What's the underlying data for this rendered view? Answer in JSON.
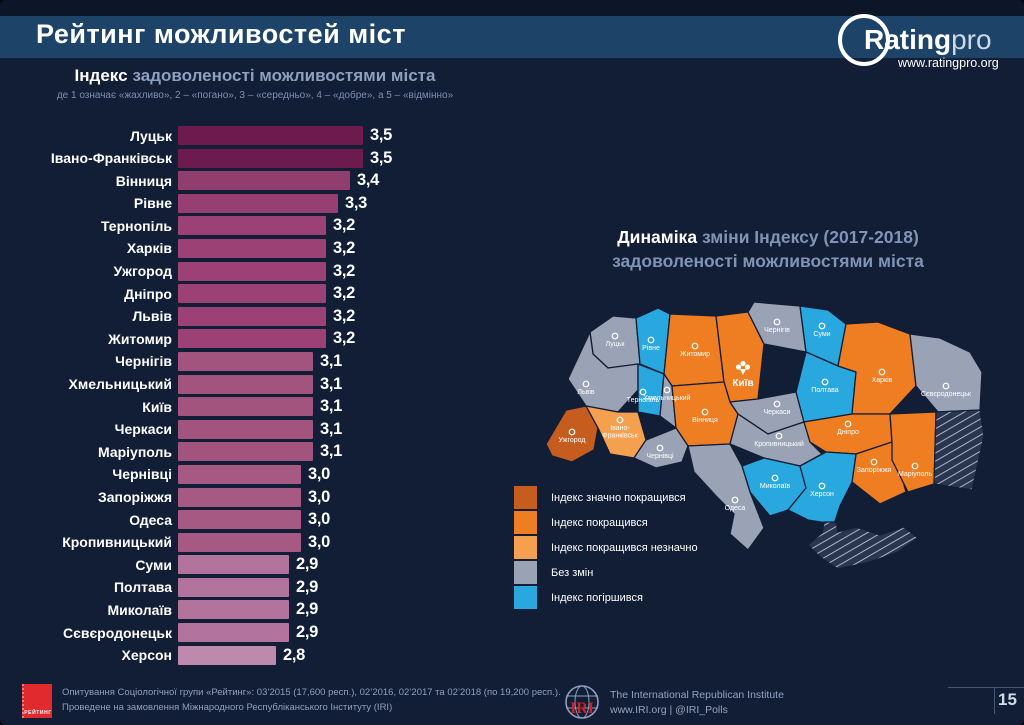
{
  "slide": {
    "title": "Рейтинг можливостей міст",
    "page_number": "15"
  },
  "brand": {
    "name_bold": "Rating",
    "name_light": "pro",
    "website": "www.ratingpro.org"
  },
  "chart_data": {
    "type": "bar",
    "title_strong": "Індекс",
    "title_rest": "задоволеності можливостями міста",
    "scale_note": "де 1 означає «жахливо», 2 – «погано», 3 – «середньо», 4 – «добре», а 5 – «відмінно»",
    "categories": [
      "Луцьк",
      "Івано-Франківськ",
      "Вінниця",
      "Рівне",
      "Тернопіль",
      "Харків",
      "Ужгород",
      "Дніпро",
      "Львів",
      "Житомир",
      "Чернігів",
      "Хмельницький",
      "Київ",
      "Черкаси",
      "Маріуполь",
      "Чернівці",
      "Запоріжжя",
      "Одеса",
      "Кропивницький",
      "Суми",
      "Полтава",
      "Миколаїв",
      "Сєвєродонецьк",
      "Херсон"
    ],
    "values": [
      3.5,
      3.5,
      3.4,
      3.3,
      3.2,
      3.2,
      3.2,
      3.2,
      3.2,
      3.2,
      3.1,
      3.1,
      3.1,
      3.1,
      3.1,
      3.0,
      3.0,
      3.0,
      3.0,
      2.9,
      2.9,
      2.9,
      2.9,
      2.8
    ],
    "value_labels": [
      "3,5",
      "3,5",
      "3,4",
      "3,3",
      "3,2",
      "3,2",
      "3,2",
      "3,2",
      "3,2",
      "3,2",
      "3,1",
      "3,1",
      "3,1",
      "3,1",
      "3,1",
      "3,0",
      "3,0",
      "3,0",
      "3,0",
      "2,9",
      "2,9",
      "2,9",
      "2,9",
      "2,8"
    ],
    "xlim": [
      2.0,
      3.52
    ],
    "bar_colors": {
      "3,5": "#6d1b4e",
      "3,4": "#913e6f",
      "3,3": "#973f72",
      "3,2": "#9b4175",
      "3,1": "#a2537e",
      "3,0": "#a65983",
      "2,9": "#b2749c",
      "2,8": "#bd89ad"
    }
  },
  "map": {
    "title_strong": "Динаміка",
    "title_rest": "зміни Індексу (2017-2018)",
    "title_line2": "задоволеності можливостями міста",
    "legend": [
      {
        "key": "much-improved",
        "label": "Індекс значно покращився",
        "color": "#c65d1e"
      },
      {
        "key": "improved",
        "label": "Індекс покращився",
        "color": "#ef7d22"
      },
      {
        "key": "slightly-improved",
        "label": "Індекс покращився незначно",
        "color": "#f4a04f"
      },
      {
        "key": "no-change",
        "label": "Без змін",
        "color": "#9aa3b5"
      },
      {
        "key": "worse",
        "label": "Індекс погіршився",
        "color": "#29a8e0"
      }
    ],
    "regions": [
      {
        "city": "Луцьк",
        "status": "no-change"
      },
      {
        "city": "Рівне",
        "status": "worse"
      },
      {
        "city": "Житомир",
        "status": "improved"
      },
      {
        "city": "Київ",
        "status": "improved"
      },
      {
        "city": "Чернігів",
        "status": "no-change"
      },
      {
        "city": "Суми",
        "status": "worse"
      },
      {
        "city": "Львів",
        "status": "no-change"
      },
      {
        "city": "Тернопіль",
        "status": "worse"
      },
      {
        "city": "Хмельницький",
        "status": "no-change"
      },
      {
        "city": "Вінниця",
        "status": "improved"
      },
      {
        "city": "Черкаси",
        "status": "no-change"
      },
      {
        "city": "Полтава",
        "status": "worse"
      },
      {
        "city": "Харків",
        "status": "improved"
      },
      {
        "city": "Сєвєродонецьк",
        "status": "no-change"
      },
      {
        "city": "Ужгород",
        "status": "much-improved"
      },
      {
        "city": "Івано-Франківськ",
        "status": "slightly-improved"
      },
      {
        "city": "Чернівці",
        "status": "no-change"
      },
      {
        "city": "Кропивницький",
        "status": "no-change"
      },
      {
        "city": "Дніпро",
        "status": "improved"
      },
      {
        "city": "Запоріжжя",
        "status": "improved"
      },
      {
        "city": "Маріуполь",
        "status": "improved"
      },
      {
        "city": "Миколаїв",
        "status": "worse"
      },
      {
        "city": "Одеса",
        "status": "no-change"
      },
      {
        "city": "Херсон",
        "status": "worse"
      }
    ]
  },
  "footer": {
    "survey_line1": "Опитування Соціологічної групи «Рейтинг»: 03’2015 (17,600 респ.), 02’2016, 02’2017 та 02’2018 (по 19,200 респ.).",
    "survey_line2": "Проведене на замовлення Міжнародного Республіканського Інституту (IRI)",
    "rating_logo_text": "РЕЙТИНГ",
    "iri_abbr": "IRI",
    "iri_name": "The International Republican Institute",
    "iri_links": "www.IRI.org | @IRI_Polls"
  }
}
